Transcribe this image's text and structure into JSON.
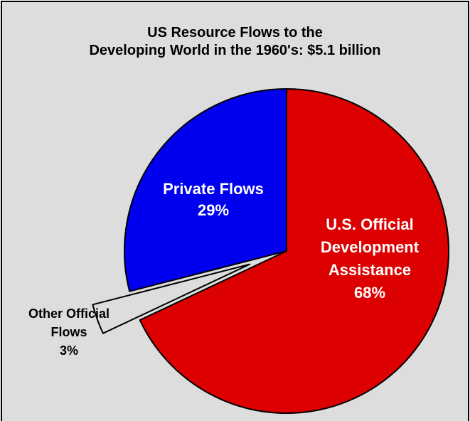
{
  "chart_data": {
    "type": "pie",
    "title": "US Resource Flows to the Developing World in the 1960's: $5.1 billion",
    "title_lines": [
      "US Resource Flows to the",
      "Developing World in the 1960's: $5.1 billion"
    ],
    "slices": [
      {
        "name": "U.S. Official Development Assistance",
        "label_lines": [
          "U.S. Official",
          "Development",
          "Assistance"
        ],
        "percent_label": "68%",
        "value": 68,
        "color": "#dd0000",
        "label_color": "#ffffff"
      },
      {
        "name": "Other Official Flows",
        "label_lines": [
          "Other Official",
          "Flows"
        ],
        "percent_label": "3%",
        "value": 3,
        "color": "#dddddd",
        "label_color": "#000000",
        "exploded": true
      },
      {
        "name": "Private Flows",
        "label_lines": [
          "Private Flows"
        ],
        "percent_label": "29%",
        "value": 29,
        "color": "#0000ee",
        "label_color": "#ffffff"
      }
    ],
    "start_direction": "12 o'clock",
    "order": "clockwise",
    "legend": "none (labels on slices)"
  }
}
